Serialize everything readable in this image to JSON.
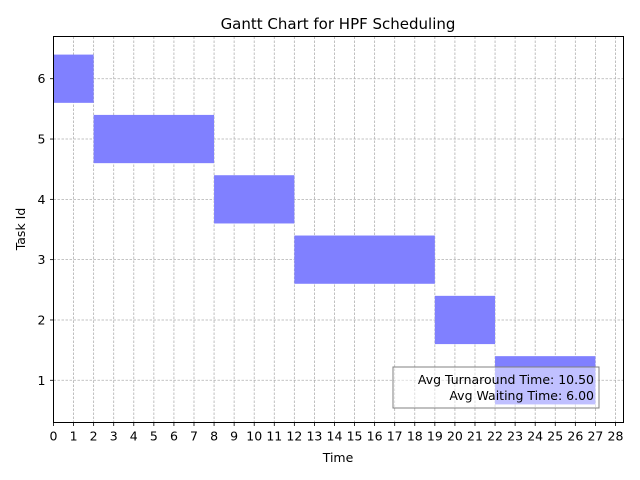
{
  "chart_data": {
    "type": "gantt",
    "title": "Gantt Chart for HPF Scheduling",
    "xlabel": "Time",
    "ylabel": "Task Id",
    "xlim": [
      0,
      28.4
    ],
    "ylim": [
      0.3,
      6.7
    ],
    "xticks": [
      0,
      1,
      2,
      3,
      4,
      5,
      6,
      7,
      8,
      9,
      10,
      11,
      12,
      13,
      14,
      15,
      16,
      17,
      18,
      19,
      20,
      21,
      22,
      23,
      24,
      25,
      26,
      27,
      28
    ],
    "yticks": [
      1,
      2,
      3,
      4,
      5,
      6
    ],
    "grid": true,
    "bar_color": "#8080ff",
    "bar_height": 0.8,
    "tasks": [
      {
        "task": 6,
        "start": 0,
        "end": 2
      },
      {
        "task": 5,
        "start": 2,
        "end": 8
      },
      {
        "task": 4,
        "start": 8,
        "end": 12
      },
      {
        "task": 3,
        "start": 12,
        "end": 19
      },
      {
        "task": 2,
        "start": 19,
        "end": 22
      },
      {
        "task": 1,
        "start": 22,
        "end": 27
      }
    ],
    "annotation": {
      "lines": [
        "Avg Turnaround Time: 10.50",
        "Avg Waiting Time: 6.00"
      ],
      "placement": "lower-right"
    }
  }
}
